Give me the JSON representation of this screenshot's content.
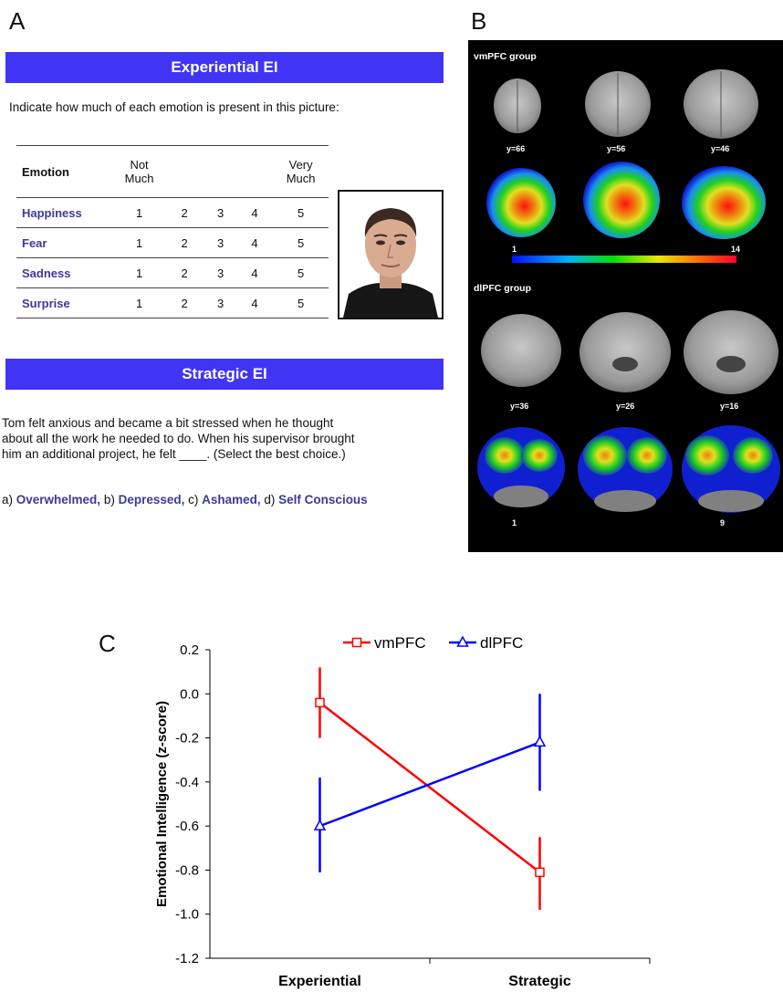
{
  "panels": {
    "a": "A",
    "b": "B",
    "c": "C"
  },
  "experiential": {
    "banner": "Experiential EI",
    "prompt": "Indicate how much of each emotion is present in this picture:",
    "header": {
      "emotion": "Emotion",
      "not_much": [
        "Not",
        "Much"
      ],
      "very_much": [
        "Very",
        "Much"
      ]
    },
    "rows": [
      {
        "emotion": "Happiness",
        "scale": [
          "1",
          "2",
          "3",
          "4",
          "5"
        ]
      },
      {
        "emotion": "Fear",
        "scale": [
          "1",
          "2",
          "3",
          "4",
          "5"
        ]
      },
      {
        "emotion": "Sadness",
        "scale": [
          "1",
          "2",
          "3",
          "4",
          "5"
        ]
      },
      {
        "emotion": "Surprise",
        "scale": [
          "1",
          "2",
          "3",
          "4",
          "5"
        ]
      }
    ]
  },
  "strategic": {
    "banner": "Strategic EI",
    "story": [
      "Tom felt anxious and became a bit stressed when he thought",
      "about all the work he needed to do. When his supervisor brought",
      "him an additional project, he felt ____.  (Select the best choice.)"
    ],
    "answers": [
      {
        "prefix": "a) ",
        "label": "Overwhelmed,"
      },
      {
        "prefix": " b) ",
        "label": "Depressed,"
      },
      {
        "prefix": " c) ",
        "label": "Ashamed,"
      },
      {
        "prefix": " d) ",
        "label": "Self Conscious"
      }
    ]
  },
  "brain": {
    "vmpfc": {
      "title": "vmPFC group",
      "slices": [
        "y=66",
        "y=56",
        "y=46"
      ],
      "scale_min": "1",
      "scale_max": "14"
    },
    "dlpfc": {
      "title": "dlPFC group",
      "slices": [
        "y=36",
        "y=26",
        "y=16"
      ],
      "scale_min": "1",
      "scale_max": "9"
    },
    "colors": [
      "#1020d0",
      "#1890f0",
      "#20d020",
      "#e0e020",
      "#f08010",
      "#e01010"
    ]
  },
  "chart_data": {
    "type": "line",
    "categories": [
      "Experiential",
      "Strategic"
    ],
    "ylabel": "Emotional Intelligence (z-score)",
    "ylim": [
      -1.2,
      0.2
    ],
    "yticks": [
      "0.2",
      "0.0",
      "-0.2",
      "-0.4",
      "-0.6",
      "-0.8",
      "-1.0",
      "-1.2"
    ],
    "legend_position": "top",
    "series": [
      {
        "name": "vmPFC",
        "color": "#ff0000",
        "marker": "square",
        "values": [
          -0.04,
          -0.81
        ],
        "err_low": [
          -0.2,
          -0.98
        ],
        "err_high": [
          0.12,
          -0.65
        ]
      },
      {
        "name": "dlPFC",
        "color": "#0000ff",
        "marker": "triangle",
        "values": [
          -0.6,
          -0.22
        ],
        "err_low": [
          -0.81,
          -0.44
        ],
        "err_high": [
          -0.38,
          0.0
        ]
      }
    ]
  }
}
